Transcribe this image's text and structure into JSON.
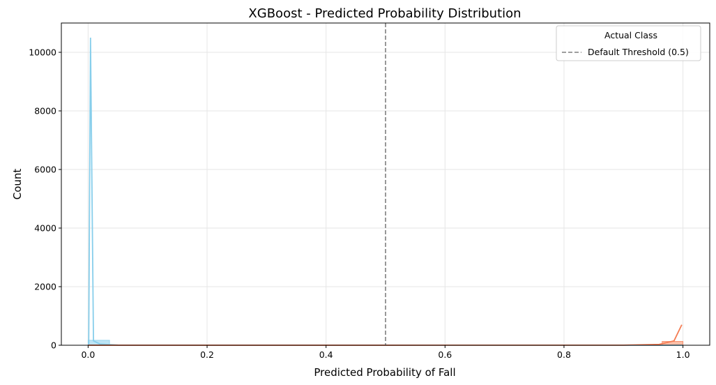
{
  "chart_data": {
    "type": "histogram",
    "title": "XGBoost - Predicted Probability Distribution",
    "xlabel": "Predicted Probability of Fall",
    "ylabel": "Count",
    "xlim": [
      -0.045,
      1.045
    ],
    "ylim": [
      0,
      11000
    ],
    "x_ticks": [
      0.0,
      0.2,
      0.4,
      0.6,
      0.8,
      1.0
    ],
    "x_tick_labels": [
      "0.0",
      "0.2",
      "0.4",
      "0.6",
      "0.8",
      "1.0"
    ],
    "y_ticks": [
      0,
      2000,
      4000,
      6000,
      8000,
      10000
    ],
    "y_tick_labels": [
      "0",
      "2000",
      "4000",
      "6000",
      "8000",
      "10000"
    ],
    "grid": true,
    "legend": {
      "title": "Actual Class",
      "placement": "top-right",
      "entries": [
        {
          "label": "Default Threshold (0.5)",
          "style": "dashed",
          "color": "#7f7f7f"
        }
      ]
    },
    "threshold": {
      "x": 0.5,
      "color": "#7f7f7f",
      "style": "dashed"
    },
    "series": [
      {
        "bins": [
          {
            "x0": 0.0,
            "x1": 0.036,
            "count": 170
          },
          {
            "x0": 0.036,
            "x1": 0.5,
            "count": 8
          },
          {
            "x0": 0.5,
            "x1": 0.965,
            "count": 3
          },
          {
            "x0": 0.965,
            "x1": 1.0,
            "count": 2
          }
        ],
        "kde": [
          [
            0.001,
            5
          ],
          [
            0.004,
            10500
          ],
          [
            0.009,
            150
          ],
          [
            0.02,
            40
          ],
          [
            0.05,
            5
          ],
          [
            0.2,
            2
          ],
          [
            0.5,
            1
          ],
          [
            1.0,
            0
          ]
        ],
        "fill": "#87ceeb",
        "line": "#87ceeb"
      },
      {
        "bins": [
          {
            "x0": 0.0,
            "x1": 0.036,
            "count": 4
          },
          {
            "x0": 0.036,
            "x1": 0.5,
            "count": 8
          },
          {
            "x0": 0.5,
            "x1": 0.965,
            "count": 8
          },
          {
            "x0": 0.965,
            "x1": 1.0,
            "count": 130
          }
        ],
        "kde": [
          [
            0.0,
            2
          ],
          [
            0.5,
            2
          ],
          [
            0.9,
            3
          ],
          [
            0.96,
            30
          ],
          [
            0.985,
            150
          ],
          [
            0.998,
            700
          ]
        ],
        "fill": "#fa8a60",
        "line": "#f47c53"
      }
    ]
  }
}
